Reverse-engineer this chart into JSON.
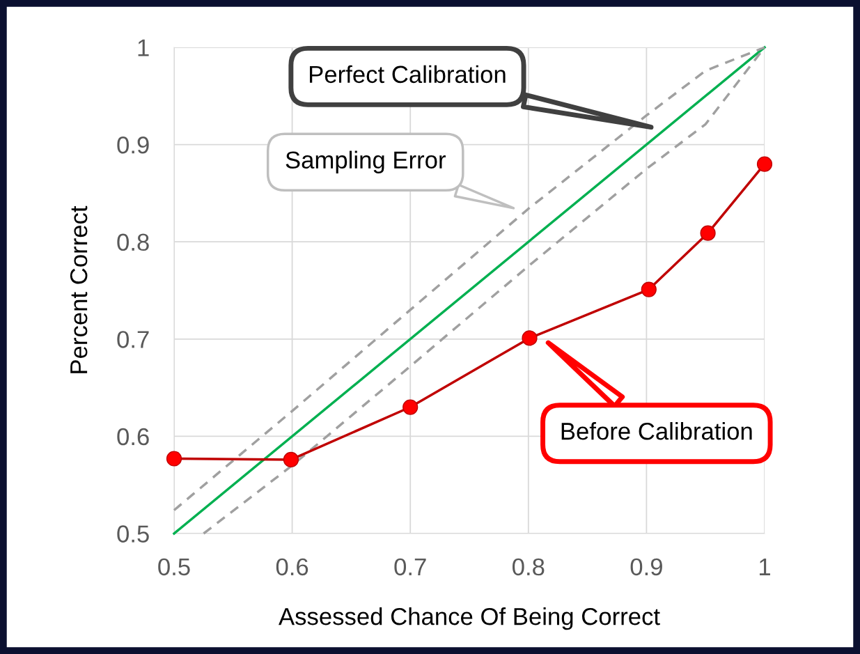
{
  "chart_data": {
    "type": "line",
    "xlabel": "Assessed Chance Of Being Correct",
    "ylabel": "Percent Correct",
    "series": [
      {
        "color": "#00b050",
        "x": [
          0.5,
          1
        ],
        "values": [
          0.5,
          1
        ],
        "marker": "none",
        "line_style": "solid"
      },
      {
        "color": "#a0a0a0",
        "x": [
          0.5,
          0.6,
          0.7,
          0.8,
          0.9,
          0.95,
          1
        ],
        "values": [
          0.524,
          0.626,
          0.73,
          0.834,
          0.93,
          0.976,
          1
        ],
        "marker": "none",
        "line_style": "dashed"
      },
      {
        "color": "#a0a0a0",
        "x": [
          0.525,
          0.6,
          0.7,
          0.8,
          0.9,
          0.95,
          1
        ],
        "values": [
          0.5,
          0.57,
          0.672,
          0.775,
          0.875,
          0.921,
          1
        ],
        "marker": "none",
        "line_style": "dashed"
      },
      {
        "color": "#c00000",
        "x": [
          0.5,
          0.599,
          0.7,
          0.801,
          0.902,
          0.952,
          1
        ],
        "values": [
          0.577,
          0.576,
          0.63,
          0.701,
          0.751,
          0.809,
          0.88
        ],
        "marker": "circle",
        "line_style": "solid"
      }
    ],
    "xlim": [
      0.5,
      1
    ],
    "ylim": [
      0.5,
      1
    ],
    "xticks": [
      0.5,
      0.6,
      0.7,
      0.8,
      0.9,
      {
        "value": 1,
        "label": "1"
      }
    ],
    "yticks": [
      0.5,
      0.6,
      0.7,
      0.8,
      0.9,
      {
        "value": 1,
        "label": "1"
      }
    ],
    "grid": true,
    "annotations": [
      "Perfect Calibration",
      "Sampling Error",
      "Before Calibration"
    ]
  }
}
